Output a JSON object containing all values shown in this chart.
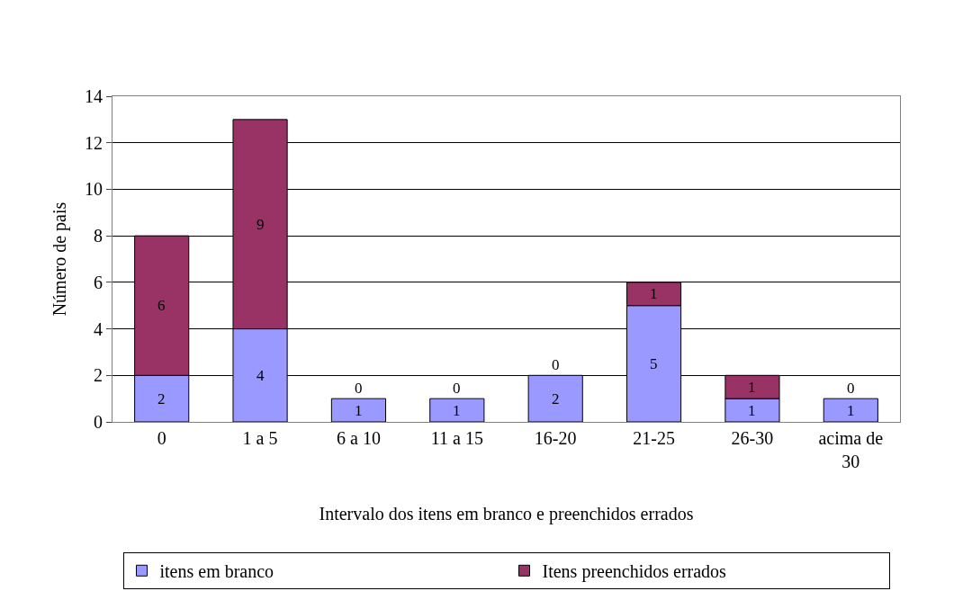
{
  "chart_data": {
    "type": "bar",
    "stacked": true,
    "xlabel": "Intervalo dos itens em branco e preenchidos errados",
    "ylabel": "Número de pais",
    "categories": [
      "0",
      "1 a 5",
      "6 a 10",
      "11 a 15",
      "16-20",
      "21-25",
      "26-30",
      "acima de 30"
    ],
    "series": [
      {
        "name": "itens em branco",
        "color": "#9999ff",
        "values": [
          2,
          4,
          1,
          1,
          2,
          5,
          1,
          1
        ]
      },
      {
        "name": "Itens preenchidos errados",
        "color": "#993366",
        "values": [
          6,
          9,
          0,
          0,
          0,
          1,
          1,
          0
        ]
      }
    ],
    "ylim": [
      0,
      14
    ],
    "yticks": [
      0,
      2,
      4,
      6,
      8,
      10,
      12,
      14
    ],
    "grid": "y",
    "legend": "bottom",
    "data_labels": true
  }
}
